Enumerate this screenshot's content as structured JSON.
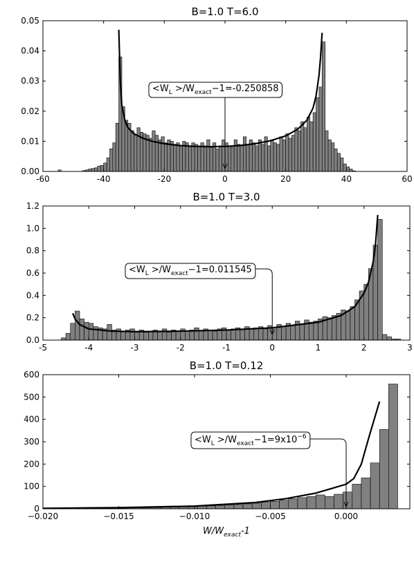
{
  "chart_data": [
    {
      "type": "histogram",
      "title": "B=1.0 T=6.0",
      "xlim": [
        -60,
        60
      ],
      "xticks": [
        -60,
        -40,
        -20,
        0,
        20,
        40,
        60
      ],
      "ylim": [
        0,
        0.05
      ],
      "yticks": [
        {
          "value": 0,
          "label": "0.00"
        },
        0.01,
        0.02,
        0.03,
        0.04,
        0.05
      ],
      "bar_color": "#808080",
      "edge_color": "#000000",
      "bins": [
        -55,
        -54,
        -53,
        -52,
        -51,
        -50,
        -49,
        -48,
        -47,
        -46,
        -45,
        -44,
        -43,
        -42,
        -41,
        -40,
        -39,
        -38,
        -37,
        -36,
        -35,
        -34,
        -33,
        -32,
        -31,
        -30,
        -29,
        -28,
        -27,
        -26,
        -25,
        -24,
        -23,
        -22,
        -21,
        -20,
        -19,
        -18,
        -17,
        -16,
        -15,
        -14,
        -13,
        -12,
        -11,
        -10,
        -9,
        -8,
        -7,
        -6,
        -5,
        -4,
        -3,
        -2,
        -1,
        0,
        1,
        2,
        3,
        4,
        5,
        6,
        7,
        8,
        9,
        10,
        11,
        12,
        13,
        14,
        15,
        16,
        17,
        18,
        19,
        20,
        21,
        22,
        23,
        24,
        25,
        26,
        27,
        28,
        29,
        30,
        31,
        32,
        33,
        34,
        35,
        36,
        37,
        38,
        39,
        40,
        41,
        42,
        43
      ],
      "counts": [
        0.0005,
        0,
        0,
        0,
        0,
        0,
        0,
        0,
        0.0003,
        0.0005,
        0.0008,
        0.001,
        0.0012,
        0.0018,
        0.002,
        0.0028,
        0.0045,
        0.0075,
        0.0095,
        0.016,
        0.038,
        0.0215,
        0.017,
        0.016,
        0.0135,
        0.012,
        0.0145,
        0.013,
        0.0125,
        0.012,
        0.011,
        0.0135,
        0.012,
        0.0105,
        0.0115,
        0.0095,
        0.0105,
        0.01,
        0.009,
        0.0095,
        0.0085,
        0.01,
        0.0095,
        0.0085,
        0.0095,
        0.009,
        0.0085,
        0.0095,
        0.0085,
        0.0105,
        0.008,
        0.0095,
        0.0075,
        0.0085,
        0.0105,
        0.0095,
        0.0085,
        0.008,
        0.0105,
        0.009,
        0.0085,
        0.0115,
        0.009,
        0.0105,
        0.0095,
        0.0085,
        0.0105,
        0.009,
        0.0115,
        0.0085,
        0.0105,
        0.0095,
        0.009,
        0.0115,
        0.0105,
        0.0125,
        0.011,
        0.012,
        0.0145,
        0.0135,
        0.0165,
        0.0145,
        0.018,
        0.0165,
        0.0195,
        0.0245,
        0.028,
        0.043,
        0.0135,
        0.0105,
        0.0095,
        0.0075,
        0.006,
        0.0045,
        0.0025,
        0.0015,
        0.0008,
        0.0002
      ],
      "line": {
        "color": "#000000",
        "x": [
          -35,
          -34.5,
          -34,
          -33,
          -32,
          -30,
          -27,
          -24,
          -20,
          -15,
          -10,
          -5,
          0,
          5,
          10,
          15,
          20,
          24,
          27,
          29,
          30,
          31,
          31.5,
          32
        ],
        "y": [
          0.047,
          0.03,
          0.022,
          0.017,
          0.0145,
          0.0125,
          0.011,
          0.01,
          0.0092,
          0.0086,
          0.0083,
          0.0082,
          0.0083,
          0.0086,
          0.0092,
          0.0102,
          0.0118,
          0.014,
          0.017,
          0.021,
          0.025,
          0.032,
          0.038,
          0.046
        ]
      },
      "annotations": [
        {
          "parts": [
            {
              "t": "<W"
            },
            {
              "t": "L",
              "s": "sub"
            },
            {
              "t": " >/W"
            },
            {
              "t": "exact",
              "s": "sub"
            },
            {
              "t": "−1=-0.250858"
            }
          ],
          "xy": [
            0,
            0.001
          ]
        }
      ]
    },
    {
      "type": "histogram",
      "title": "B=1.0 T=3.0",
      "xlim": [
        -5,
        3
      ],
      "xticks": [
        -5,
        -4,
        -3,
        -2,
        -1,
        0,
        1,
        2,
        3
      ],
      "ylim": [
        0,
        1.2
      ],
      "yticks": [
        {
          "value": 0,
          "label": "0.0"
        },
        0.2,
        0.4,
        0.6,
        0.8,
        {
          "value": 1,
          "label": "1.0"
        },
        1.2
      ],
      "bar_color": "#808080",
      "edge_color": "#000000",
      "bins": [
        -4.6,
        -4.5,
        -4.4,
        -4.3,
        -4.2,
        -4.1,
        -4.0,
        -3.9,
        -3.8,
        -3.7,
        -3.6,
        -3.5,
        -3.4,
        -3.3,
        -3.2,
        -3.1,
        -3.0,
        -2.9,
        -2.8,
        -2.7,
        -2.6,
        -2.5,
        -2.4,
        -2.3,
        -2.2,
        -2.1,
        -2.0,
        -1.9,
        -1.8,
        -1.7,
        -1.6,
        -1.5,
        -1.4,
        -1.3,
        -1.2,
        -1.1,
        -1.0,
        -0.9,
        -0.8,
        -0.7,
        -0.6,
        -0.5,
        -0.4,
        -0.3,
        -0.2,
        -0.1,
        0.0,
        0.1,
        0.2,
        0.3,
        0.4,
        0.5,
        0.6,
        0.7,
        0.8,
        0.9,
        1.0,
        1.1,
        1.2,
        1.3,
        1.4,
        1.5,
        1.6,
        1.7,
        1.8,
        1.9,
        2.0,
        2.1,
        2.2,
        2.3,
        2.4,
        2.5,
        2.6,
        2.7,
        2.8
      ],
      "counts": [
        0.02,
        0.06,
        0.15,
        0.26,
        0.19,
        0.16,
        0.15,
        0.12,
        0.11,
        0.1,
        0.14,
        0.09,
        0.1,
        0.08,
        0.09,
        0.1,
        0.08,
        0.09,
        0.07,
        0.08,
        0.09,
        0.08,
        0.1,
        0.07,
        0.09,
        0.08,
        0.1,
        0.08,
        0.09,
        0.11,
        0.08,
        0.1,
        0.09,
        0.08,
        0.1,
        0.11,
        0.09,
        0.1,
        0.11,
        0.1,
        0.12,
        0.1,
        0.11,
        0.12,
        0.1,
        0.13,
        0.1,
        0.14,
        0.12,
        0.15,
        0.13,
        0.17,
        0.14,
        0.18,
        0.16,
        0.17,
        0.19,
        0.21,
        0.2,
        0.22,
        0.24,
        0.27,
        0.26,
        0.3,
        0.36,
        0.44,
        0.5,
        0.64,
        0.85,
        1.08,
        0.05,
        0.03,
        0.01,
        0.01
      ],
      "line": {
        "color": "#000000",
        "x": [
          -4.35,
          -4.3,
          -4.2,
          -4.0,
          -3.5,
          -3,
          -2,
          -1,
          0,
          1,
          1.5,
          1.8,
          2.0,
          2.1,
          2.2,
          2.25,
          2.3
        ],
        "y": [
          0.24,
          0.19,
          0.14,
          0.1,
          0.08,
          0.075,
          0.08,
          0.09,
          0.11,
          0.16,
          0.22,
          0.3,
          0.42,
          0.52,
          0.7,
          0.85,
          1.12
        ]
      },
      "annotations": [
        {
          "parts": [
            {
              "t": "<W"
            },
            {
              "t": "L",
              "s": "sub"
            },
            {
              "t": " >/W"
            },
            {
              "t": "exact",
              "s": "sub"
            },
            {
              "t": "−1=0.011545"
            }
          ],
          "xy": [
            0,
            0.05
          ]
        }
      ]
    },
    {
      "type": "histogram",
      "title": "B=1.0 T=0.12",
      "xlim": [
        -0.02,
        0.0042
      ],
      "xticks": [
        {
          "value": -0.02,
          "label": "−0.020"
        },
        {
          "value": -0.015,
          "label": "−0.015"
        },
        {
          "value": -0.01,
          "label": "−0.010"
        },
        {
          "value": -0.005,
          "label": "−0.005"
        },
        {
          "value": 0,
          "label": "0.000"
        }
      ],
      "ylim": [
        0,
        600
      ],
      "yticks": [
        0,
        100,
        200,
        300,
        400,
        500,
        600
      ],
      "bar_color": "#808080",
      "edge_color": "#000000",
      "bins": [
        -0.02,
        -0.0194,
        -0.0188,
        -0.0182,
        -0.0176,
        -0.017,
        -0.0164,
        -0.0158,
        -0.0152,
        -0.0146,
        -0.014,
        -0.0134,
        -0.0128,
        -0.0122,
        -0.0116,
        -0.011,
        -0.0104,
        -0.0098,
        -0.0092,
        -0.0086,
        -0.008,
        -0.0074,
        -0.0068,
        -0.0062,
        -0.0056,
        -0.005,
        -0.0044,
        -0.0038,
        -0.0032,
        -0.0026,
        -0.002,
        -0.0014,
        -0.0008,
        -0.0002,
        0.0004,
        0.001,
        0.0016,
        0.0022,
        0.0028,
        0.0034
      ],
      "counts": [
        1,
        1,
        1,
        1,
        2,
        2,
        2,
        3,
        3,
        4,
        4,
        5,
        6,
        7,
        8,
        9,
        10,
        12,
        13,
        15,
        17,
        19,
        22,
        25,
        29,
        33,
        38,
        45,
        50,
        55,
        62,
        55,
        65,
        75,
        110,
        138,
        205,
        355,
        558
      ],
      "line": {
        "color": "#000000",
        "x": [
          -0.02,
          -0.015,
          -0.01,
          -0.006,
          -0.004,
          -0.002,
          -0.001,
          0,
          0.0005,
          0.001,
          0.0015,
          0.0022
        ],
        "y": [
          2,
          5,
          12,
          28,
          45,
          70,
          90,
          110,
          135,
          200,
          320,
          480
        ]
      },
      "annotations": [
        {
          "parts": [
            {
              "t": "<W"
            },
            {
              "t": "L",
              "s": "sub"
            },
            {
              "t": " >/W"
            },
            {
              "t": "exact",
              "s": "sub"
            },
            {
              "t": "−1"
            },
            {
              "t": "=9x10"
            },
            {
              "t": "−6",
              "s": "sup"
            }
          ],
          "xy": [
            0,
            10
          ]
        }
      ],
      "xlabel": [
        {
          "t": "W/W"
        },
        {
          "t": "exact",
          "s": "sub"
        },
        {
          "t": "-1"
        }
      ]
    }
  ]
}
